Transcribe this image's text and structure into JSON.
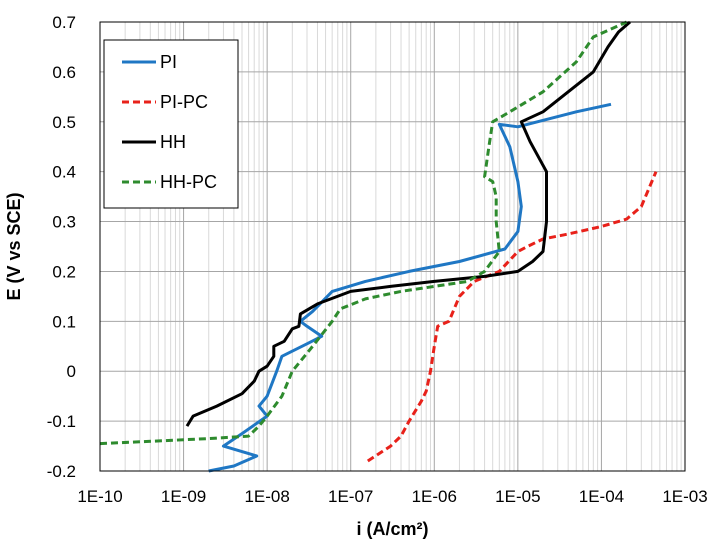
{
  "chart_data": {
    "type": "line",
    "xlabel": "i (A/cm²)",
    "ylabel": "E (V vs SCE)",
    "x_scale": "log",
    "xlim": [
      1e-10,
      0.001
    ],
    "ylim": [
      -0.2,
      0.7
    ],
    "x_ticks": [
      {
        "v": 1e-10,
        "label": "1E-10"
      },
      {
        "v": 1e-09,
        "label": "1E-09"
      },
      {
        "v": 1e-08,
        "label": "1E-08"
      },
      {
        "v": 1e-07,
        "label": "1E-07"
      },
      {
        "v": 1e-06,
        "label": "1E-06"
      },
      {
        "v": 1e-05,
        "label": "1E-05"
      },
      {
        "v": 0.0001,
        "label": "1E-04"
      },
      {
        "v": 0.001,
        "label": "1E-03"
      }
    ],
    "y_ticks": [
      {
        "v": -0.2,
        "label": "-0.2"
      },
      {
        "v": -0.1,
        "label": "-0.1"
      },
      {
        "v": 0,
        "label": "0"
      },
      {
        "v": 0.1,
        "label": "0.1"
      },
      {
        "v": 0.2,
        "label": "0.2"
      },
      {
        "v": 0.3,
        "label": "0.3"
      },
      {
        "v": 0.4,
        "label": "0.4"
      },
      {
        "v": 0.5,
        "label": "0.5"
      },
      {
        "v": 0.6,
        "label": "0.6"
      },
      {
        "v": 0.7,
        "label": "0.7"
      }
    ],
    "grid": true,
    "legend_position": "top-left",
    "series": [
      {
        "name": "PI",
        "color": "#1f77c4",
        "dash": "solid",
        "points": [
          [
            2e-09,
            -0.2
          ],
          [
            4e-09,
            -0.19
          ],
          [
            7.5e-09,
            -0.17
          ],
          [
            3e-09,
            -0.15
          ],
          [
            5e-09,
            -0.125
          ],
          [
            1e-08,
            -0.09
          ],
          [
            8e-09,
            -0.07
          ],
          [
            1e-08,
            -0.05
          ],
          [
            1.3e-08,
            0
          ],
          [
            1.5e-08,
            0.03
          ],
          [
            3e-08,
            0.055
          ],
          [
            4.5e-08,
            0.07
          ],
          [
            3e-08,
            0.09
          ],
          [
            2.5e-08,
            0.1
          ],
          [
            3.5e-08,
            0.12
          ],
          [
            6e-08,
            0.16
          ],
          [
            1.5e-07,
            0.18
          ],
          [
            5e-07,
            0.2
          ],
          [
            2e-06,
            0.22
          ],
          [
            7e-06,
            0.245
          ],
          [
            1e-05,
            0.28
          ],
          [
            1.1e-05,
            0.33
          ],
          [
            1e-05,
            0.38
          ],
          [
            8e-06,
            0.45
          ],
          [
            6e-06,
            0.495
          ],
          [
            1e-05,
            0.49
          ],
          [
            5e-05,
            0.52
          ],
          [
            0.00013,
            0.535
          ]
        ]
      },
      {
        "name": "PI-PC",
        "color": "#e8211a",
        "dash": "dashed",
        "points": [
          [
            1.6e-07,
            -0.18
          ],
          [
            3e-07,
            -0.15
          ],
          [
            4e-07,
            -0.13
          ],
          [
            5e-07,
            -0.1
          ],
          [
            7e-07,
            -0.06
          ],
          [
            8e-07,
            -0.04
          ],
          [
            9e-07,
            0
          ],
          [
            1e-06,
            0.05
          ],
          [
            1.1e-06,
            0.09
          ],
          [
            1.5e-06,
            0.1
          ],
          [
            2e-06,
            0.15
          ],
          [
            3e-06,
            0.18
          ],
          [
            6e-06,
            0.2
          ],
          [
            1e-05,
            0.24
          ],
          [
            1.3e-05,
            0.25
          ],
          [
            2e-05,
            0.265
          ],
          [
            4e-05,
            0.275
          ],
          [
            0.0001,
            0.29
          ],
          [
            0.0002,
            0.305
          ],
          [
            0.0003,
            0.33
          ],
          [
            0.00045,
            0.4
          ]
        ]
      },
      {
        "name": "HH",
        "color": "#000000",
        "dash": "solid",
        "points": [
          [
            1.1e-09,
            -0.11
          ],
          [
            1.3e-09,
            -0.09
          ],
          [
            2.5e-09,
            -0.07
          ],
          [
            5e-09,
            -0.045
          ],
          [
            7e-09,
            -0.02
          ],
          [
            8e-09,
            0
          ],
          [
            1e-08,
            0.01
          ],
          [
            1.2e-08,
            0.03
          ],
          [
            1.2e-08,
            0.05
          ],
          [
            1.6e-08,
            0.06
          ],
          [
            2e-08,
            0.085
          ],
          [
            2.4e-08,
            0.09
          ],
          [
            2.5e-08,
            0.115
          ],
          [
            4e-08,
            0.135
          ],
          [
            1e-07,
            0.16
          ],
          [
            3e-07,
            0.17
          ],
          [
            1e-06,
            0.18
          ],
          [
            4e-06,
            0.19
          ],
          [
            1e-05,
            0.2
          ],
          [
            1.5e-05,
            0.22
          ],
          [
            2e-05,
            0.24
          ],
          [
            2.2e-05,
            0.3
          ],
          [
            2.2e-05,
            0.4
          ],
          [
            1.4e-05,
            0.46
          ],
          [
            1.1e-05,
            0.5
          ],
          [
            2e-05,
            0.52
          ],
          [
            4e-05,
            0.56
          ],
          [
            8e-05,
            0.6
          ],
          [
            0.00012,
            0.65
          ],
          [
            0.00016,
            0.68
          ],
          [
            0.00022,
            0.7
          ]
        ]
      },
      {
        "name": "HH-PC",
        "color": "#2e8b2e",
        "dash": "dashed",
        "points": [
          [
            1e-10,
            -0.145
          ],
          [
            2e-09,
            -0.135
          ],
          [
            6e-09,
            -0.13
          ],
          [
            8e-09,
            -0.11
          ],
          [
            1e-08,
            -0.09
          ],
          [
            1.5e-08,
            -0.05
          ],
          [
            2e-08,
            0
          ],
          [
            3.5e-08,
            0.05
          ],
          [
            6e-08,
            0.1
          ],
          [
            7.5e-08,
            0.125
          ],
          [
            1.5e-07,
            0.145
          ],
          [
            4e-07,
            0.16
          ],
          [
            1e-06,
            0.17
          ],
          [
            2.5e-06,
            0.18
          ],
          [
            4e-06,
            0.2
          ],
          [
            6e-06,
            0.24
          ],
          [
            5.5e-06,
            0.3
          ],
          [
            5.5e-06,
            0.35
          ],
          [
            5e-06,
            0.38
          ],
          [
            4e-06,
            0.39
          ],
          [
            4.5e-06,
            0.45
          ],
          [
            5e-06,
            0.5
          ],
          [
            8e-06,
            0.52
          ],
          [
            2e-05,
            0.56
          ],
          [
            5e-05,
            0.62
          ],
          [
            8e-05,
            0.67
          ],
          [
            0.0002,
            0.7
          ]
        ]
      }
    ]
  }
}
